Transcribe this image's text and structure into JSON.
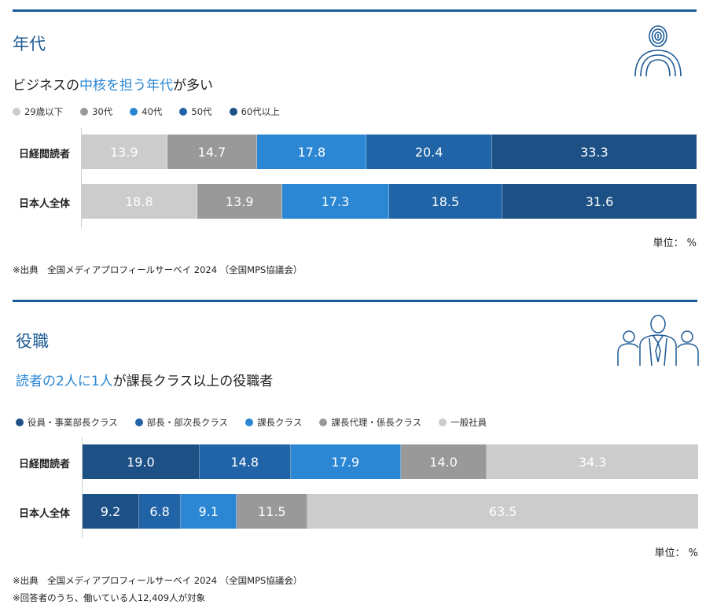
{
  "colors": {
    "c1": "#cccccc",
    "c2": "#999999",
    "c3": "#2b87d4",
    "c4": "#2063a6",
    "c5": "#1d5186",
    "accent": "#2b87d4",
    "rule": "#1c5a96"
  },
  "section1": {
    "title": "年代",
    "headline_pre": "ビジネスの",
    "headline_hl": "中核を担う年代",
    "headline_post": "が多い",
    "icon": "fingerprint-person-icon",
    "unit": "単位： %",
    "note": "※出典　全国メディアプロフィールサーベイ 2024 （全国MPS協議会）"
  },
  "section2": {
    "title": "役職",
    "headline_hl1": "読者の2人に1人",
    "headline_post": "が課長クラス以上の役職者",
    "icon": "business-people-icon",
    "unit": "単位： %",
    "note1": "※出典　全国メディアプロフィールサーベイ 2024 （全国MPS協議会）",
    "note2": "※回答者のうち、働いている人12,409人が対象"
  },
  "chart_data": [
    {
      "type": "bar",
      "orientation": "horizontal-stacked-100",
      "categories": [
        "日経閲読者",
        "日本人全体"
      ],
      "series": [
        {
          "name": "29歳以下",
          "color": "#cccccc",
          "values": [
            13.9,
            18.8
          ]
        },
        {
          "name": "30代",
          "color": "#999999",
          "values": [
            14.7,
            13.9
          ]
        },
        {
          "name": "40代",
          "color": "#2b87d4",
          "values": [
            17.8,
            17.3
          ]
        },
        {
          "name": "50代",
          "color": "#2063a6",
          "values": [
            20.4,
            18.5
          ]
        },
        {
          "name": "60代以上",
          "color": "#1d5186",
          "values": [
            33.3,
            31.6
          ]
        }
      ],
      "legend": "top-left",
      "grid": false
    },
    {
      "type": "bar",
      "orientation": "horizontal-stacked-100",
      "categories": [
        "日経閲読者",
        "日本人全体"
      ],
      "series": [
        {
          "name": "役員・事業部長クラス",
          "color": "#1d5186",
          "values": [
            19.0,
            9.2
          ]
        },
        {
          "name": "部長・部次長クラス",
          "color": "#2063a6",
          "values": [
            14.8,
            6.8
          ]
        },
        {
          "name": "課長クラス",
          "color": "#2b87d4",
          "values": [
            17.9,
            9.1
          ]
        },
        {
          "name": "課長代理・係長クラス",
          "color": "#999999",
          "values": [
            14.0,
            11.5
          ]
        },
        {
          "name": "一般社員",
          "color": "#cccccc",
          "values": [
            34.3,
            63.5
          ]
        }
      ],
      "legend": "top-left",
      "grid": false
    }
  ]
}
